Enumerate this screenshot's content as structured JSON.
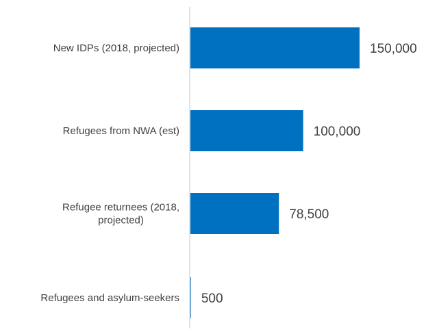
{
  "chart_data": {
    "type": "bar",
    "orientation": "horizontal",
    "categories": [
      [
        "New IDPs (2018, projected)"
      ],
      [
        "Refugees from NWA (est)"
      ],
      [
        "Refugee returnees (2018,",
        "projected)"
      ],
      [
        "Refugees and asylum-seekers"
      ]
    ],
    "values": [
      150000,
      100000,
      78500,
      500
    ],
    "value_labels": [
      "150,000",
      "100,000",
      "78,500",
      "500"
    ],
    "xlim": [
      0,
      150000
    ],
    "grid": false,
    "legend": "none",
    "colors": {
      "bar": "#0070C0",
      "axis": "#D9D9D9",
      "text": "#404040"
    }
  }
}
